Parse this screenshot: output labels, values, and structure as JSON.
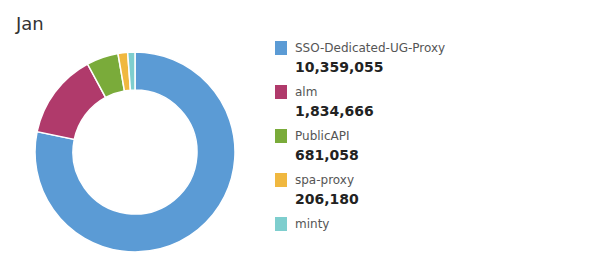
{
  "chart_data": {
    "type": "donut",
    "title": "Jan",
    "categories": [
      "SSO-Dedicated-UG-Proxy",
      "alm",
      "PublicAPI",
      "spa-proxy",
      "minty"
    ],
    "values": [
      10359055,
      1834666,
      681058,
      206180,
      155000
    ],
    "colors": [
      "#5B9BD5",
      "#B03A6B",
      "#7AAB3A",
      "#F0B840",
      "#7ECECE"
    ],
    "value_labels": [
      "10,359,055",
      "1,834,666",
      "681,058",
      "206,180",
      null
    ],
    "legend": "right"
  }
}
